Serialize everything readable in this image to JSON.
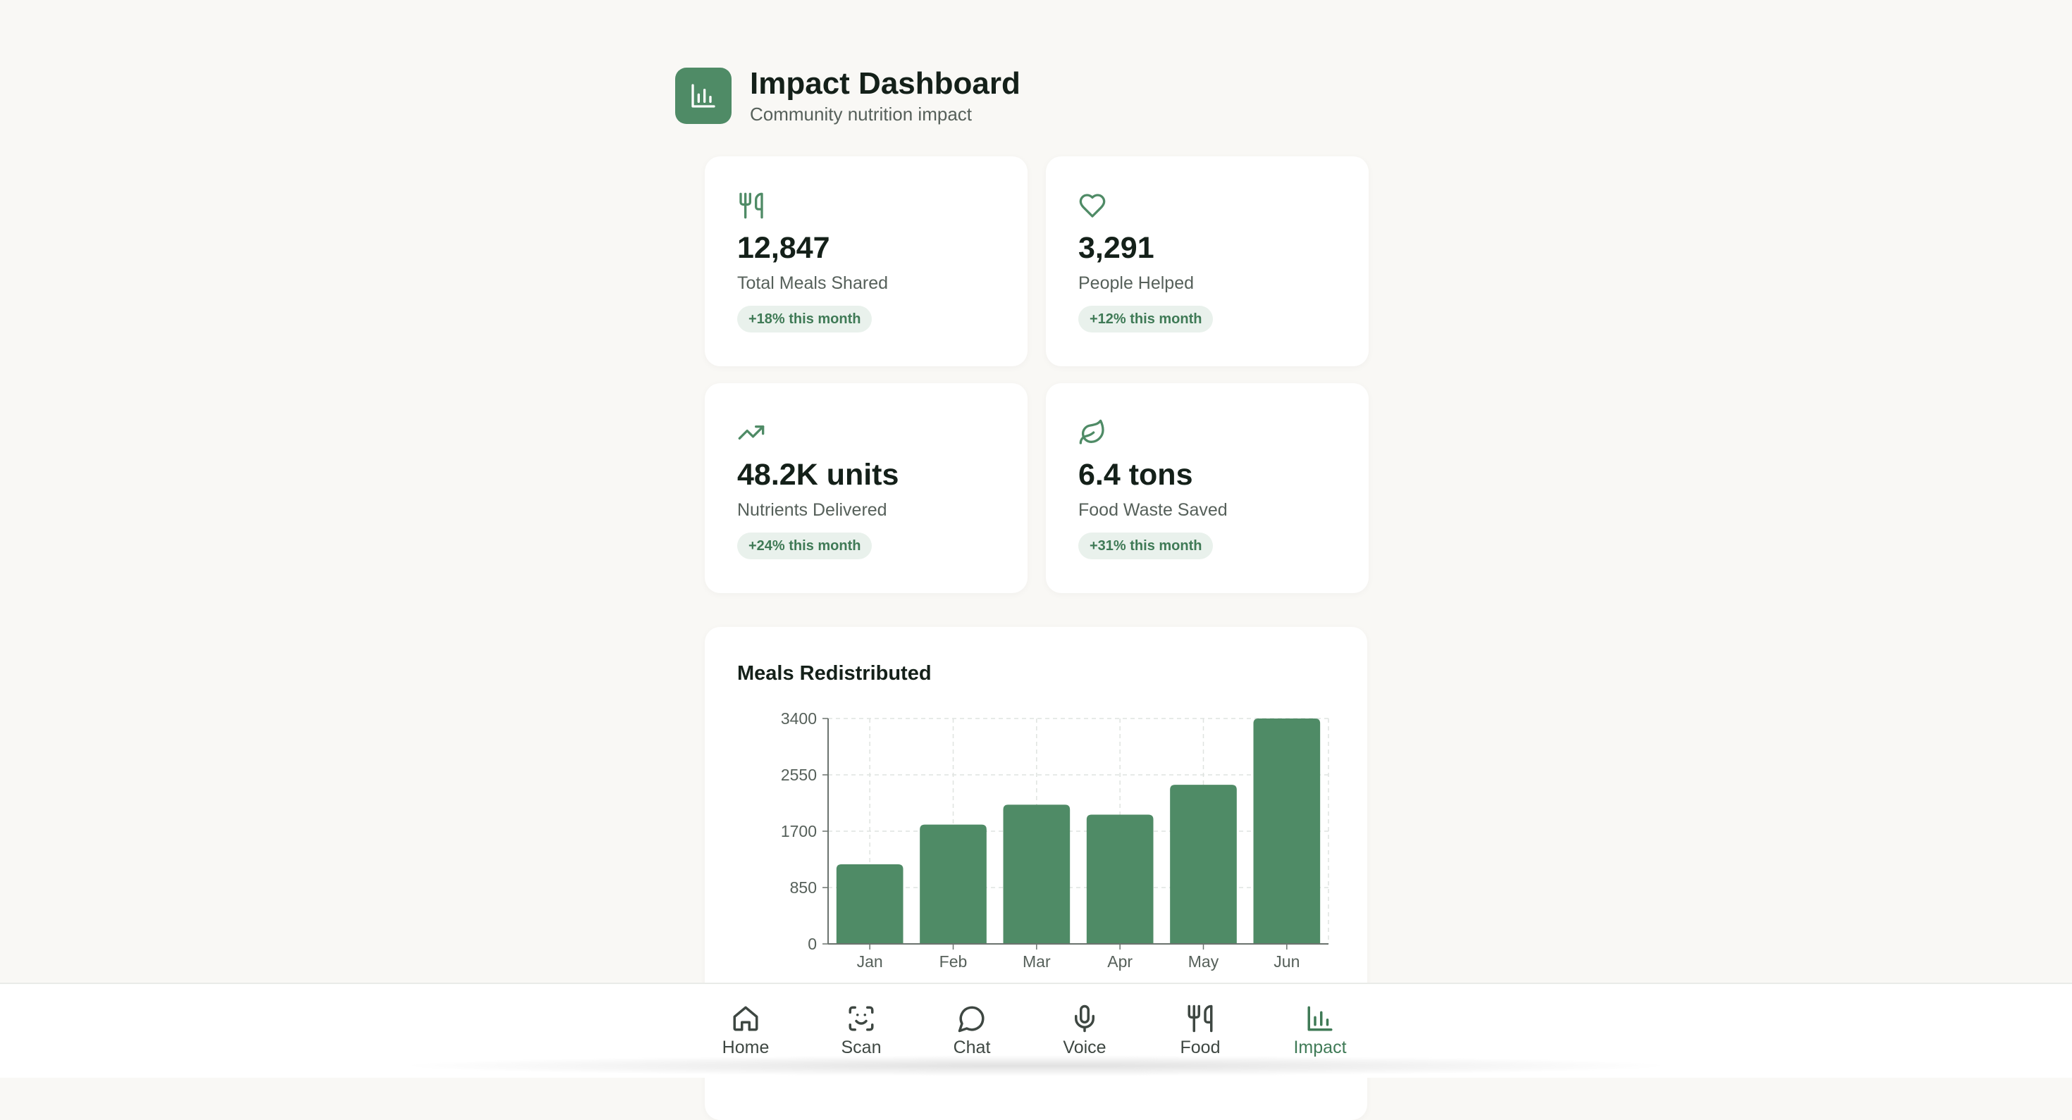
{
  "header": {
    "title": "Impact Dashboard",
    "subtitle": "Community nutrition impact",
    "icon": "bar-chart-icon"
  },
  "stats": [
    {
      "icon": "utensils-icon",
      "value": "12,847",
      "label": "Total Meals Shared",
      "change": "+18% this month"
    },
    {
      "icon": "heart-icon",
      "value": "3,291",
      "label": "People Helped",
      "change": "+12% this month"
    },
    {
      "icon": "trending-up-icon",
      "value": "48.2K units",
      "label": "Nutrients Delivered",
      "change": "+24% this month"
    },
    {
      "icon": "leaf-icon",
      "value": "6.4 tons",
      "label": "Food Waste Saved",
      "change": "+31% this month"
    }
  ],
  "chart": {
    "title": "Meals Redistributed"
  },
  "chart_data": {
    "type": "bar",
    "title": "Meals Redistributed",
    "categories": [
      "Jan",
      "Feb",
      "Mar",
      "Apr",
      "May",
      "Jun"
    ],
    "values": [
      1200,
      1800,
      2100,
      1950,
      2400,
      3400
    ],
    "yticks": [
      0,
      850,
      1700,
      2550,
      3400
    ],
    "ylim": [
      0,
      3400
    ],
    "grid": true,
    "color": "#4f8b66"
  },
  "nav": {
    "items": [
      {
        "label": "Home",
        "icon": "home-icon",
        "active": false
      },
      {
        "label": "Scan",
        "icon": "scan-icon",
        "active": false
      },
      {
        "label": "Chat",
        "icon": "chat-icon",
        "active": false
      },
      {
        "label": "Voice",
        "icon": "microphone-icon",
        "active": false
      },
      {
        "label": "Food",
        "icon": "utensils-icon",
        "active": false
      },
      {
        "label": "Impact",
        "icon": "bar-chart-icon",
        "active": true
      }
    ]
  },
  "colors": {
    "accent": "#4f8b66",
    "badge_bg": "#e9f1ec",
    "badge_text": "#3f7a56"
  }
}
